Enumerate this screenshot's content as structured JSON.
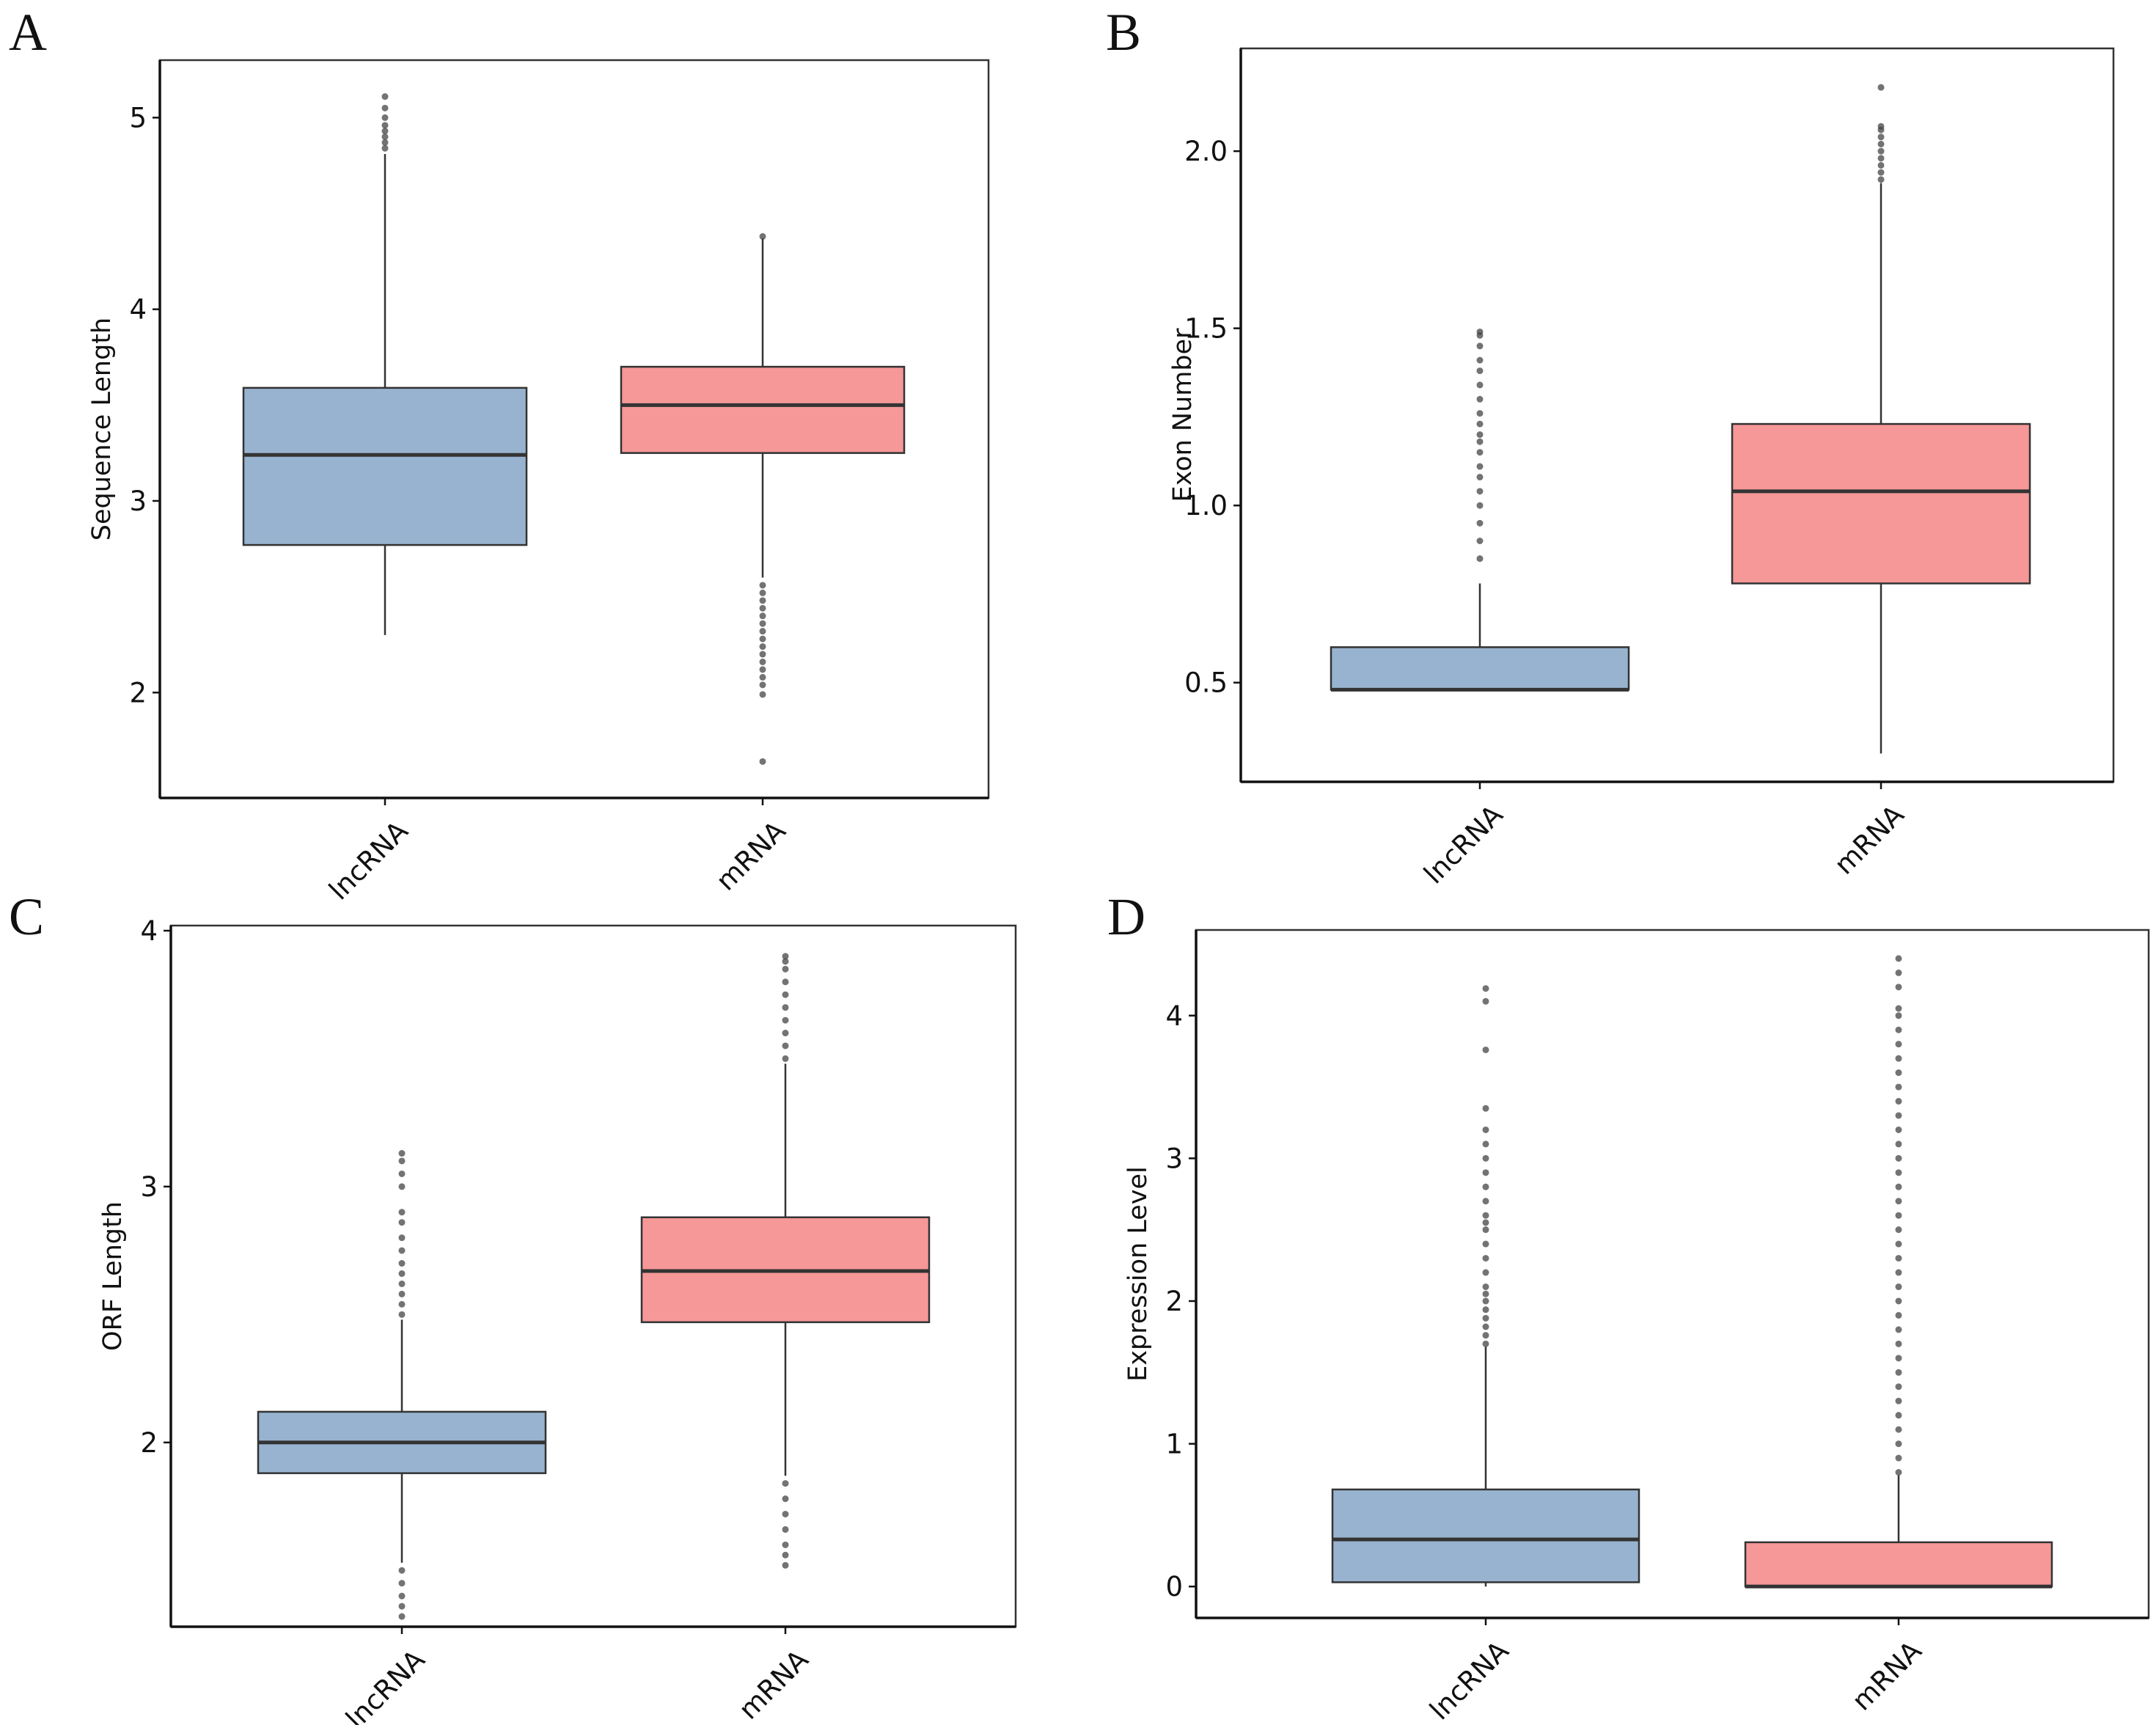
{
  "figure": {
    "panels": [
      "A",
      "B",
      "C",
      "D"
    ]
  },
  "colors": {
    "lncRNA": "#98b3cf",
    "mRNA": "#f59897",
    "border": "#333333",
    "median": "#333333",
    "outlier": "#444444"
  },
  "chart_data": [
    {
      "panel": "A",
      "type": "box",
      "title": "",
      "xlabel": "",
      "ylabel": "Sequence Length",
      "categories": [
        "lncRNA",
        "mRNA"
      ],
      "ylim": [
        1.45,
        5.3
      ],
      "yticks": [
        2,
        3,
        4,
        5
      ],
      "ytick_labels": [
        "2",
        "3",
        "4",
        "5"
      ],
      "boxes": [
        {
          "name": "lncRNA",
          "q1": 2.77,
          "median": 3.24,
          "q3": 3.59,
          "whisker_low": 2.3,
          "whisker_high": 4.81,
          "outliers": [
            4.84,
            4.87,
            4.9,
            4.93,
            4.96,
            5.0,
            5.05,
            5.11
          ]
        },
        {
          "name": "mRNA",
          "q1": 3.25,
          "median": 3.5,
          "q3": 3.7,
          "whisker_low": 2.6,
          "whisker_high": 4.37,
          "outliers": [
            4.38,
            2.56,
            2.52,
            2.48,
            2.44,
            2.4,
            2.36,
            2.32,
            2.28,
            2.24,
            2.2,
            2.16,
            2.12,
            2.08,
            2.04,
            1.99,
            1.64
          ]
        }
      ]
    },
    {
      "panel": "B",
      "type": "box",
      "title": "",
      "xlabel": "",
      "ylabel": "Exon Number",
      "categories": [
        "lncRNA",
        "mRNA"
      ],
      "ylim": [
        0.22,
        2.29
      ],
      "yticks": [
        0.5,
        1.0,
        1.5,
        2.0
      ],
      "ytick_labels": [
        "0.5",
        "1.0",
        "1.5",
        "2.0"
      ],
      "boxes": [
        {
          "name": "lncRNA",
          "q1": 0.48,
          "median": 0.48,
          "q3": 0.6,
          "whisker_low": 0.48,
          "whisker_high": 0.78,
          "outliers": [
            0.85,
            0.9,
            0.95,
            1.0,
            1.04,
            1.08,
            1.11,
            1.15,
            1.18,
            1.2,
            1.23,
            1.26,
            1.3,
            1.34,
            1.38,
            1.41,
            1.45,
            1.48,
            1.49
          ]
        },
        {
          "name": "mRNA",
          "q1": 0.78,
          "median": 1.04,
          "q3": 1.23,
          "whisker_low": 0.3,
          "whisker_high": 1.91,
          "outliers": [
            1.92,
            1.94,
            1.96,
            1.98,
            2.0,
            2.02,
            2.04,
            2.06,
            2.07,
            2.18
          ]
        }
      ]
    },
    {
      "panel": "C",
      "type": "box",
      "title": "",
      "xlabel": "",
      "ylabel": "ORF Length",
      "categories": [
        "lncRNA",
        "mRNA"
      ],
      "ylim": [
        1.28,
        4.02
      ],
      "yticks": [
        2,
        3,
        4
      ],
      "ytick_labels": [
        "2",
        "3",
        "4"
      ],
      "boxes": [
        {
          "name": "lncRNA",
          "q1": 1.88,
          "median": 2.0,
          "q3": 2.12,
          "whisker_low": 1.53,
          "whisker_high": 2.48,
          "outliers": [
            2.5,
            2.54,
            2.58,
            2.62,
            2.66,
            2.7,
            2.75,
            2.8,
            2.86,
            2.9,
            3.0,
            3.05,
            3.1,
            3.13,
            1.5,
            1.45,
            1.4,
            1.36,
            1.32
          ]
        },
        {
          "name": "mRNA",
          "q1": 2.47,
          "median": 2.67,
          "q3": 2.88,
          "whisker_low": 1.87,
          "whisker_high": 3.48,
          "outliers": [
            3.5,
            3.55,
            3.6,
            3.65,
            3.7,
            3.75,
            3.8,
            3.85,
            3.88,
            3.9,
            1.84,
            1.78,
            1.72,
            1.66,
            1.6,
            1.56,
            1.52
          ]
        }
      ]
    },
    {
      "panel": "D",
      "type": "box",
      "title": "",
      "xlabel": "",
      "ylabel": "Expression Level",
      "categories": [
        "lncRNA",
        "mRNA"
      ],
      "ylim": [
        -0.22,
        4.6
      ],
      "yticks": [
        0,
        1,
        2,
        3,
        4
      ],
      "ytick_labels": [
        "0",
        "1",
        "2",
        "3",
        "4"
      ],
      "boxes": [
        {
          "name": "lncRNA",
          "q1": 0.03,
          "median": 0.33,
          "q3": 0.68,
          "whisker_low": 0.0,
          "whisker_high": 1.68,
          "outliers": [
            1.7,
            1.76,
            1.82,
            1.88,
            1.94,
            2.0,
            2.05,
            2.1,
            2.2,
            2.3,
            2.4,
            2.5,
            2.55,
            2.6,
            2.7,
            2.8,
            2.9,
            3.0,
            3.1,
            3.2,
            3.35,
            3.76,
            4.1,
            4.19
          ]
        },
        {
          "name": "mRNA",
          "q1": 0.0,
          "median": 0.0,
          "q3": 0.31,
          "whisker_low": 0.0,
          "whisker_high": 0.78,
          "outliers": [
            0.8,
            0.9,
            1.0,
            1.1,
            1.2,
            1.3,
            1.4,
            1.5,
            1.6,
            1.7,
            1.8,
            1.9,
            2.0,
            2.1,
            2.2,
            2.3,
            2.4,
            2.5,
            2.6,
            2.7,
            2.8,
            2.9,
            3.0,
            3.1,
            3.2,
            3.3,
            3.4,
            3.5,
            3.6,
            3.7,
            3.8,
            3.9,
            4.0,
            4.05,
            4.2,
            4.3,
            4.4
          ]
        }
      ]
    }
  ]
}
